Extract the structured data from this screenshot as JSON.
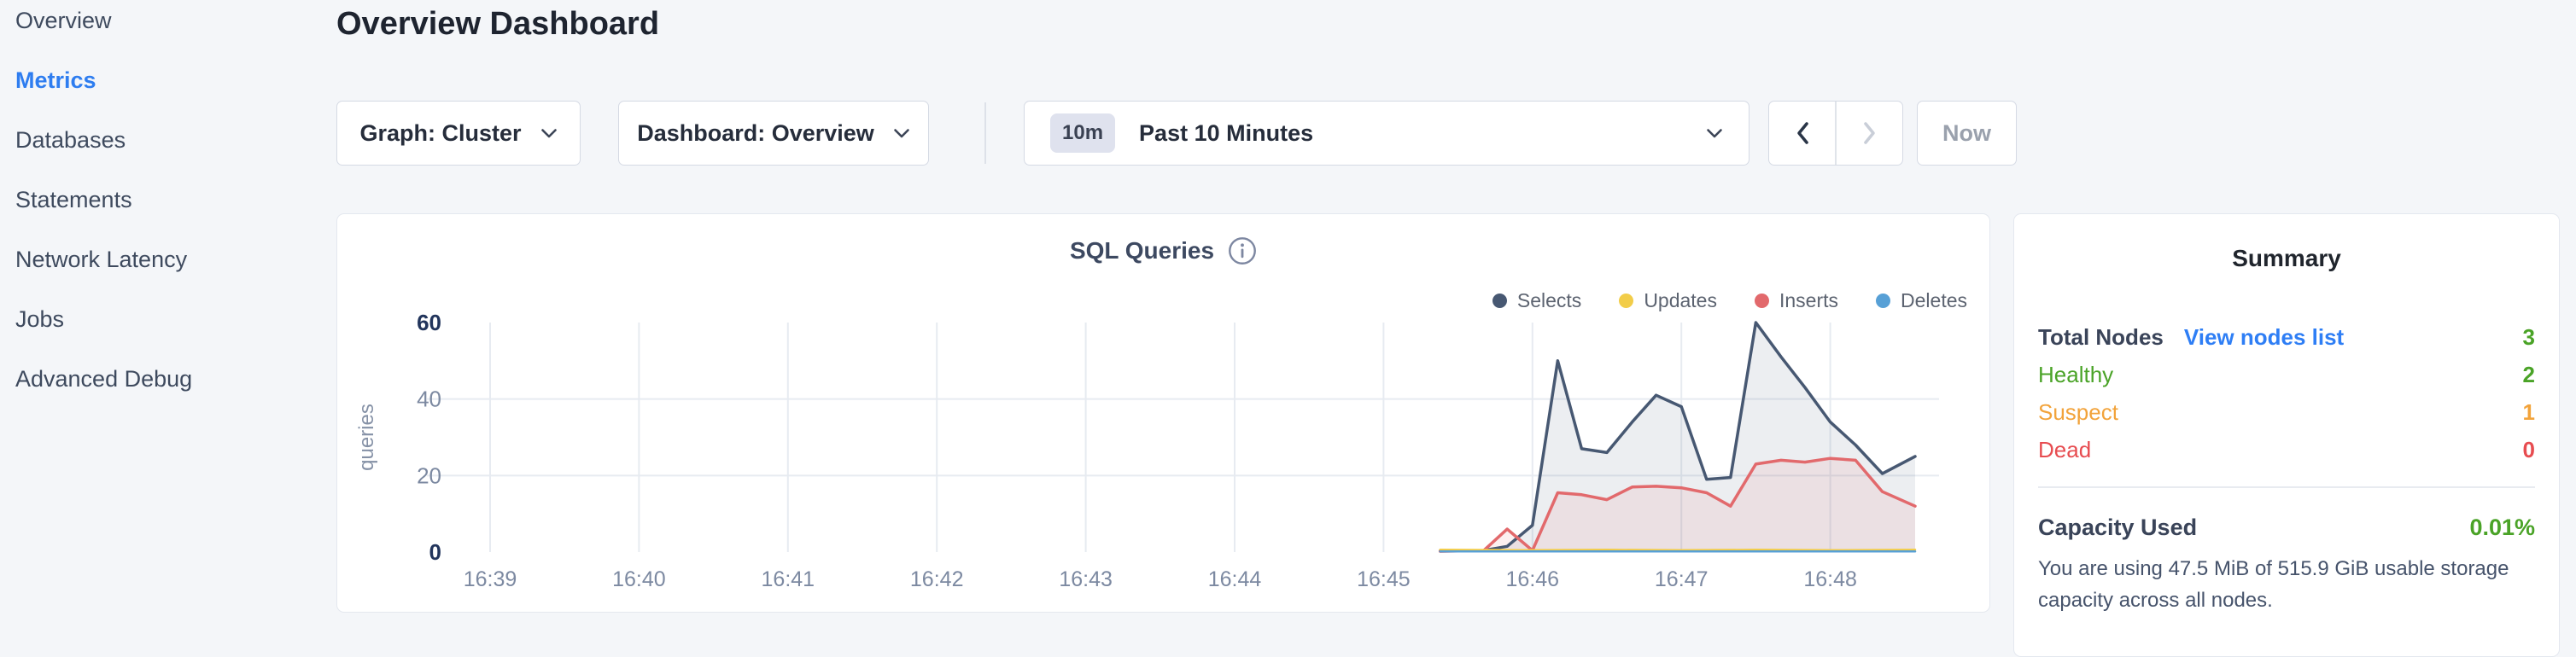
{
  "sidebar": {
    "items": [
      {
        "label": "Overview",
        "active": false
      },
      {
        "label": "Metrics",
        "active": true
      },
      {
        "label": "Databases",
        "active": false
      },
      {
        "label": "Statements",
        "active": false
      },
      {
        "label": "Network Latency",
        "active": false
      },
      {
        "label": "Jobs",
        "active": false
      },
      {
        "label": "Advanced Debug",
        "active": false
      }
    ],
    "active_color": "#2e7df0"
  },
  "header": {
    "title": "Overview Dashboard"
  },
  "controls": {
    "graph_dropdown": {
      "label": "Graph: Cluster"
    },
    "dashboard_dropdown": {
      "label": "Dashboard: Overview"
    },
    "time_window": {
      "badge": "10m",
      "label": "Past 10 Minutes"
    },
    "pager": {
      "prev_enabled": true,
      "next_enabled": false
    },
    "now_button": {
      "label": "Now",
      "enabled": false
    }
  },
  "icons": {
    "graph_dropdown": "chevron-down",
    "dashboard_dropdown": "chevron-down",
    "time_window": "chevron-down",
    "pager_prev": "chevron-left",
    "pager_next": "chevron-right",
    "chart_info": "info-circle"
  },
  "chart_data": {
    "type": "area",
    "title": "SQL Queries",
    "ylabel": "queries",
    "ylim": [
      0,
      60
    ],
    "yticks": [
      0,
      20,
      40,
      60
    ],
    "x_tick_labels": [
      "16:39",
      "16:40",
      "16:41",
      "16:42",
      "16:43",
      "16:44",
      "16:45",
      "16:46",
      "16:47",
      "16:48"
    ],
    "x_unit": "minutes after 16:39",
    "grid": true,
    "legend_position": "top-right",
    "legend": [
      {
        "name": "Selects",
        "color": "#475872"
      },
      {
        "name": "Updates",
        "color": "#f2cd49"
      },
      {
        "name": "Inserts",
        "color": "#e2696c"
      },
      {
        "name": "Deletes",
        "color": "#57a0d6"
      }
    ],
    "series": [
      {
        "name": "Selects",
        "color": "#475872",
        "fill": "rgba(71,88,114,0.10)",
        "width": 3.5,
        "points": [
          [
            6.38,
            0.3
          ],
          [
            6.5,
            0.4
          ],
          [
            6.67,
            0.4
          ],
          [
            6.83,
            1.5
          ],
          [
            7.0,
            7
          ],
          [
            7.17,
            50
          ],
          [
            7.33,
            27
          ],
          [
            7.5,
            26
          ],
          [
            7.67,
            34
          ],
          [
            7.83,
            41
          ],
          [
            8.0,
            38
          ],
          [
            8.17,
            19
          ],
          [
            8.33,
            19.5
          ],
          [
            8.5,
            60
          ],
          [
            8.67,
            51
          ],
          [
            8.83,
            43
          ],
          [
            9.0,
            34
          ],
          [
            9.17,
            28
          ],
          [
            9.35,
            20.5
          ],
          [
            9.57,
            25
          ]
        ]
      },
      {
        "name": "Inserts",
        "color": "#e2696c",
        "fill": "rgba(226,105,108,0.10)",
        "width": 3.5,
        "points": [
          [
            6.38,
            0.2
          ],
          [
            6.5,
            0.3
          ],
          [
            6.67,
            0.3
          ],
          [
            6.83,
            6
          ],
          [
            7.0,
            0.4
          ],
          [
            7.17,
            15.5
          ],
          [
            7.33,
            15
          ],
          [
            7.5,
            13.7
          ],
          [
            7.67,
            17
          ],
          [
            7.83,
            17.2
          ],
          [
            8.0,
            16.8
          ],
          [
            8.17,
            15.5
          ],
          [
            8.33,
            12
          ],
          [
            8.5,
            23
          ],
          [
            8.67,
            24
          ],
          [
            8.83,
            23.5
          ],
          [
            9.0,
            24.5
          ],
          [
            9.17,
            24
          ],
          [
            9.35,
            15.8
          ],
          [
            9.57,
            12
          ]
        ]
      },
      {
        "name": "Updates",
        "color": "#f2cd49",
        "fill": null,
        "width": 2.5,
        "points": [
          [
            6.38,
            0.6
          ],
          [
            7.0,
            0.5
          ],
          [
            7.5,
            0.6
          ],
          [
            8.0,
            0.5
          ],
          [
            8.5,
            0.6
          ],
          [
            9.0,
            0.5
          ],
          [
            9.57,
            0.6
          ]
        ]
      },
      {
        "name": "Deletes",
        "color": "#57a0d6",
        "fill": null,
        "width": 2.5,
        "points": [
          [
            6.38,
            0.15
          ],
          [
            9.57,
            0.15
          ]
        ]
      }
    ]
  },
  "summary": {
    "title": "Summary",
    "total_nodes": {
      "label": "Total Nodes",
      "link": "View nodes list",
      "link_color": "#2e7ef5",
      "value": "3",
      "value_color": "#4aa327"
    },
    "statuses": [
      {
        "label": "Healthy",
        "value": "2",
        "color": "#4aa327"
      },
      {
        "label": "Suspect",
        "value": "1",
        "color": "#f2a33b"
      },
      {
        "label": "Dead",
        "value": "0",
        "color": "#e74c50"
      }
    ],
    "capacity": {
      "label": "Capacity Used",
      "value": "0.01%",
      "value_color": "#4aa327",
      "caption": "You are using 47.5 MiB of 515.9 GiB usable storage capacity across all nodes."
    }
  }
}
